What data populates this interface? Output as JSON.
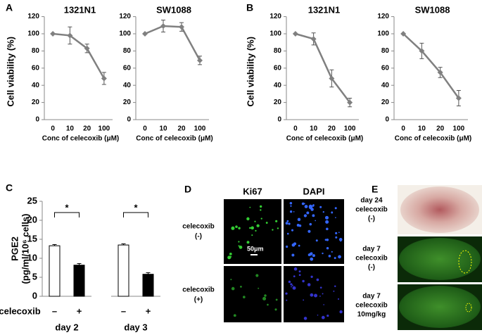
{
  "panel_labels": [
    "A",
    "B",
    "C",
    "D",
    "E"
  ],
  "chart_data": [
    {
      "type": "line",
      "title": "1321N1",
      "ylabel": "Cell viability (%)",
      "xlabel": "Conc of celecoxib (μM)",
      "categories": [
        "0",
        "10",
        "20",
        "100"
      ],
      "values": [
        100,
        98,
        83,
        48
      ],
      "errors": [
        0,
        10,
        5,
        7
      ],
      "color": "#808080",
      "ylim": [
        0,
        120
      ],
      "yticks": [
        0,
        20,
        40,
        60,
        80,
        100,
        120
      ]
    },
    {
      "type": "line",
      "title": "SW1088",
      "xlabel": "Conc of celecoxib (μM)",
      "categories": [
        "0",
        "10",
        "20",
        "100"
      ],
      "values": [
        100,
        109,
        108,
        69
      ],
      "errors": [
        0,
        7,
        5,
        5
      ],
      "color": "#808080",
      "ylim": [
        0,
        120
      ],
      "yticks": [
        0,
        20,
        40,
        60,
        80,
        100,
        120
      ]
    },
    {
      "type": "line",
      "title": "1321N1",
      "ylabel": "Cell viability (%)",
      "xlabel": "Conc of celecoxib (μM)",
      "categories": [
        "0",
        "10",
        "20",
        "100"
      ],
      "values": [
        100,
        94,
        48,
        20
      ],
      "errors": [
        0,
        7,
        10,
        5
      ],
      "color": "#808080",
      "ylim": [
        0,
        120
      ],
      "yticks": [
        0,
        20,
        40,
        60,
        80,
        100,
        120
      ]
    },
    {
      "type": "line",
      "title": "SW1088",
      "xlabel": "Conc of celecoxib (μM)",
      "categories": [
        "0",
        "10",
        "20",
        "100"
      ],
      "values": [
        100,
        80,
        55,
        25
      ],
      "errors": [
        0,
        9,
        6,
        9
      ],
      "color": "#808080",
      "ylim": [
        0,
        120
      ],
      "yticks": [
        0,
        20,
        40,
        60,
        80,
        100,
        120
      ]
    },
    {
      "type": "bar",
      "ylabel": [
        "PGE2",
        "(pg/ml/10⁶ cells)"
      ],
      "row_label": "celecoxib",
      "xlabel": "day 2",
      "categories": [
        "–",
        "+"
      ],
      "values": [
        13.3,
        8.2
      ],
      "errors": [
        0.3,
        0.4
      ],
      "colors": [
        "#ffffff",
        "#000000"
      ],
      "significance": "*",
      "ylim": [
        0,
        25
      ],
      "yticks": [
        0,
        5,
        10,
        15,
        20,
        25
      ]
    },
    {
      "type": "bar",
      "xlabel": "day 3",
      "categories": [
        "–",
        "+"
      ],
      "values": [
        13.5,
        5.8
      ],
      "errors": [
        0.3,
        0.4
      ],
      "colors": [
        "#ffffff",
        "#000000"
      ],
      "significance": "*",
      "ylim": [
        0,
        25
      ]
    }
  ],
  "panel_d": {
    "columns": [
      "Ki67",
      "DAPI"
    ],
    "rows": [
      [
        "celecoxib",
        "(-)"
      ],
      [
        "celecoxib",
        "(+)"
      ]
    ],
    "scale_bar": "50μm"
  },
  "panel_e": {
    "rows": [
      [
        "day 24",
        "celecoxib",
        "(-)"
      ],
      [
        "day 7",
        "celecoxib",
        "(-)"
      ],
      [
        "day 7",
        "celecoxib",
        "10mg/kg"
      ]
    ]
  }
}
